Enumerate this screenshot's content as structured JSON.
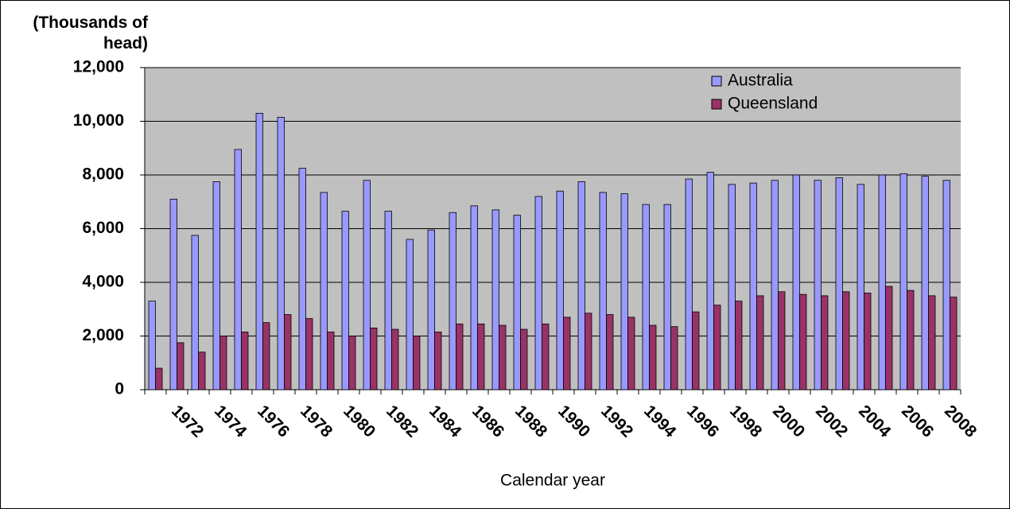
{
  "chart_data": {
    "type": "bar",
    "y_label": "(Thousands of head)",
    "x_label": "Calendar year",
    "categories": [
      null,
      "1972",
      null,
      "1974",
      null,
      "1976",
      null,
      "1978",
      null,
      "1980",
      null,
      "1982",
      null,
      "1984",
      null,
      "1986",
      null,
      "1988",
      null,
      "1990",
      null,
      "1992",
      null,
      "1994",
      null,
      "1996",
      null,
      "1998",
      null,
      "2000",
      null,
      "2002",
      null,
      "2004",
      null,
      "2006",
      null,
      "2008"
    ],
    "series": [
      {
        "name": "Australia",
        "color": "#9999ff",
        "values": [
          3300,
          7100,
          5750,
          7750,
          8950,
          10300,
          10150,
          8250,
          7350,
          6650,
          7800,
          6650,
          5600,
          5950,
          6600,
          6850,
          6700,
          6500,
          7200,
          7400,
          7750,
          7350,
          7300,
          6900,
          6900,
          7850,
          8100,
          7650,
          7700,
          7800,
          8000,
          7800,
          7900,
          7650,
          8000,
          8050,
          7950,
          7800
        ]
      },
      {
        "name": "Queensland",
        "color": "#993366",
        "values": [
          800,
          1750,
          1400,
          2000,
          2150,
          2500,
          2800,
          2650,
          2150,
          2000,
          2300,
          2250,
          2000,
          2150,
          2450,
          2450,
          2400,
          2250,
          2450,
          2700,
          2850,
          2800,
          2700,
          2400,
          2350,
          2900,
          3150,
          3300,
          3500,
          3650,
          3550,
          3500,
          3650,
          3600,
          3850,
          3700,
          3500,
          3450
        ]
      }
    ],
    "ylim": [
      0,
      12000
    ],
    "yticks": [
      0,
      {
        "value": 2000,
        "label": "2,000"
      },
      {
        "value": 4000,
        "label": "4,000"
      },
      {
        "value": 6000,
        "label": "6,000"
      },
      {
        "value": 8000,
        "label": "8,000"
      },
      {
        "value": 10000,
        "label": "10,000"
      },
      {
        "value": 12000,
        "label": "12,000"
      }
    ],
    "grid": true,
    "legend": "top-right"
  }
}
